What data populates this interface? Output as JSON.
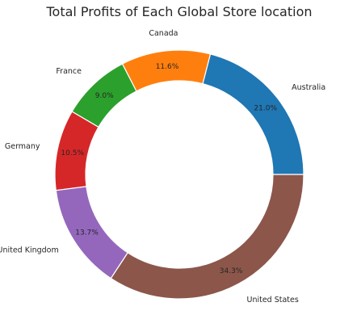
{
  "chart_data": {
    "type": "pie",
    "title": "Total Profits of Each Global Store location",
    "donut": true,
    "start_angle_deg": 0,
    "direction": "counterclockwise",
    "categories": [
      "Australia",
      "Canada",
      "France",
      "Germany",
      "United Kingdom",
      "United States"
    ],
    "values": [
      21.0,
      11.6,
      9.0,
      10.5,
      13.7,
      34.3
    ],
    "value_labels": [
      "21.0%",
      "11.6%",
      "9.0%",
      "10.5%",
      "13.7%",
      "34.3%"
    ],
    "colors": [
      "#1f77b4",
      "#ff7f0e",
      "#2ca02c",
      "#d62728",
      "#9467bd",
      "#8c564b"
    ],
    "legend": "none"
  }
}
